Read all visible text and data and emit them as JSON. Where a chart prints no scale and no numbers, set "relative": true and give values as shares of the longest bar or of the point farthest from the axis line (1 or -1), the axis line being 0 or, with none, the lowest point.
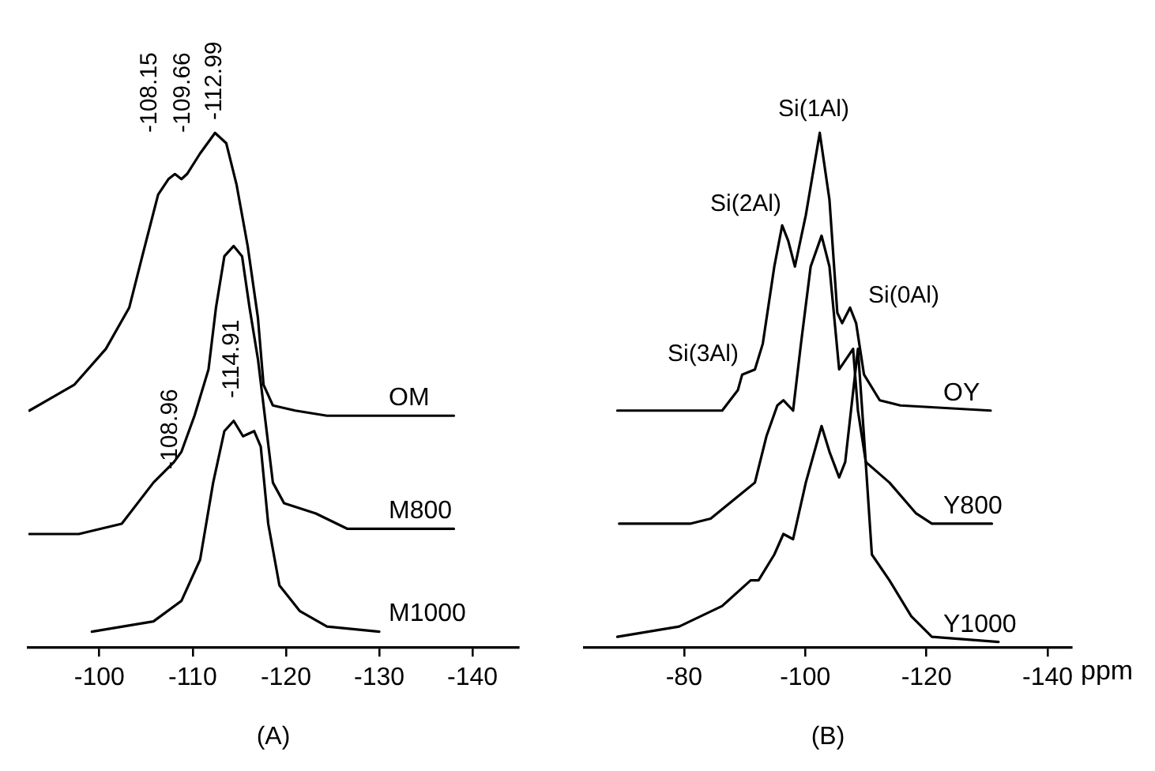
{
  "chart_data": [
    {
      "type": "line",
      "title": "(A)",
      "relative": true,
      "grid": false,
      "legend": false,
      "marker": "none",
      "line_style": "solid",
      "xlim": [
        -92.4,
        -144.9
      ],
      "xticks": [
        -100,
        -110,
        -120,
        -130,
        -140
      ],
      "annotations": [
        "-108.15",
        "-109.66",
        "-112.99",
        "-108.96",
        "-114.91"
      ],
      "series": [
        {
          "name": "OM",
          "color": "#000000",
          "x": [
            -92.5,
            -97.3,
            -100.7,
            -103.2,
            -104.6,
            -106.3,
            -107.4,
            -108.1,
            -108.8,
            -109.4,
            -110.8,
            -112.4,
            -113.6,
            -114.7,
            -115.9,
            -117.0,
            -117.6,
            -118.6,
            -121.0,
            -124.4,
            -138.0
          ],
          "values": [
            0.46,
            0.51,
            0.58,
            0.66,
            0.76,
            0.88,
            0.91,
            0.92,
            0.91,
            0.92,
            0.96,
            1.0,
            0.98,
            0.9,
            0.78,
            0.64,
            0.51,
            0.47,
            0.46,
            0.45,
            0.45
          ]
        },
        {
          "name": "M800",
          "color": "#000000",
          "x": [
            -92.5,
            -97.8,
            -102.4,
            -105.8,
            -108.0,
            -108.8,
            -110.2,
            -111.7,
            -112.5,
            -113.4,
            -114.4,
            -115.3,
            -116.1,
            -117.0,
            -117.6,
            -118.6,
            -119.8,
            -123.2,
            -126.6,
            -138.0
          ],
          "values": [
            0.22,
            0.22,
            0.24,
            0.32,
            0.36,
            0.38,
            0.45,
            0.54,
            0.66,
            0.76,
            0.78,
            0.76,
            0.66,
            0.56,
            0.47,
            0.32,
            0.28,
            0.26,
            0.23,
            0.23
          ]
        },
        {
          "name": "M1000",
          "color": "#000000",
          "x": [
            -99.2,
            -105.8,
            -108.8,
            -110.8,
            -112.2,
            -113.4,
            -114.4,
            -115.4,
            -116.6,
            -117.3,
            -118.1,
            -119.3,
            -121.5,
            -124.4,
            -130.0
          ],
          "values": [
            0.03,
            0.05,
            0.09,
            0.17,
            0.32,
            0.42,
            0.44,
            0.41,
            0.42,
            0.39,
            0.24,
            0.12,
            0.07,
            0.04,
            0.03
          ]
        }
      ]
    },
    {
      "type": "line",
      "title": "(B)",
      "xlabel": "ppm",
      "relative": true,
      "grid": false,
      "legend": false,
      "marker": "none",
      "line_style": "solid",
      "xlim": [
        -63.6,
        -143.9
      ],
      "xticks": [
        -80,
        -100,
        -120,
        -140
      ],
      "annotations": [
        "Si(1Al)",
        "Si(2Al)",
        "Si(0Al)",
        "Si(3Al)"
      ],
      "series": [
        {
          "name": "OY",
          "color": "#000000",
          "x": [
            -69.0,
            -86.3,
            -88.9,
            -89.6,
            -91.7,
            -93.0,
            -94.9,
            -96.2,
            -97.2,
            -98.3,
            -100.1,
            -102.4,
            -104.0,
            -105.3,
            -106.1,
            -107.4,
            -108.4,
            -109.7,
            -112.3,
            -115.7,
            -130.6
          ],
          "values": [
            0.46,
            0.46,
            0.5,
            0.53,
            0.54,
            0.59,
            0.74,
            0.82,
            0.79,
            0.74,
            0.84,
            1.0,
            0.87,
            0.65,
            0.63,
            0.66,
            0.63,
            0.53,
            0.48,
            0.47,
            0.46
          ]
        },
        {
          "name": "Y800",
          "color": "#000000",
          "x": [
            -69.3,
            -81.0,
            -84.4,
            -89.6,
            -91.7,
            -93.6,
            -95.4,
            -96.4,
            -98.0,
            -99.3,
            -100.9,
            -102.7,
            -104.0,
            -105.6,
            -107.9,
            -108.7,
            -110.0,
            -113.9,
            -118.3,
            -120.9,
            -130.8
          ],
          "values": [
            0.24,
            0.24,
            0.25,
            0.3,
            0.32,
            0.41,
            0.47,
            0.48,
            0.46,
            0.59,
            0.74,
            0.8,
            0.74,
            0.54,
            0.58,
            0.46,
            0.36,
            0.32,
            0.26,
            0.24,
            0.24
          ]
        },
        {
          "name": "Y1000",
          "color": "#000000",
          "x": [
            -69.0,
            -79.2,
            -86.3,
            -91.0,
            -92.3,
            -94.9,
            -96.4,
            -98.0,
            -100.1,
            -102.7,
            -104.0,
            -105.6,
            -106.6,
            -108.7,
            -109.7,
            -111.0,
            -113.9,
            -117.5,
            -120.9,
            -131.9
          ],
          "values": [
            0.02,
            0.04,
            0.08,
            0.13,
            0.13,
            0.18,
            0.22,
            0.21,
            0.32,
            0.43,
            0.38,
            0.33,
            0.36,
            0.58,
            0.41,
            0.18,
            0.13,
            0.06,
            0.02,
            0.01
          ]
        }
      ]
    }
  ]
}
